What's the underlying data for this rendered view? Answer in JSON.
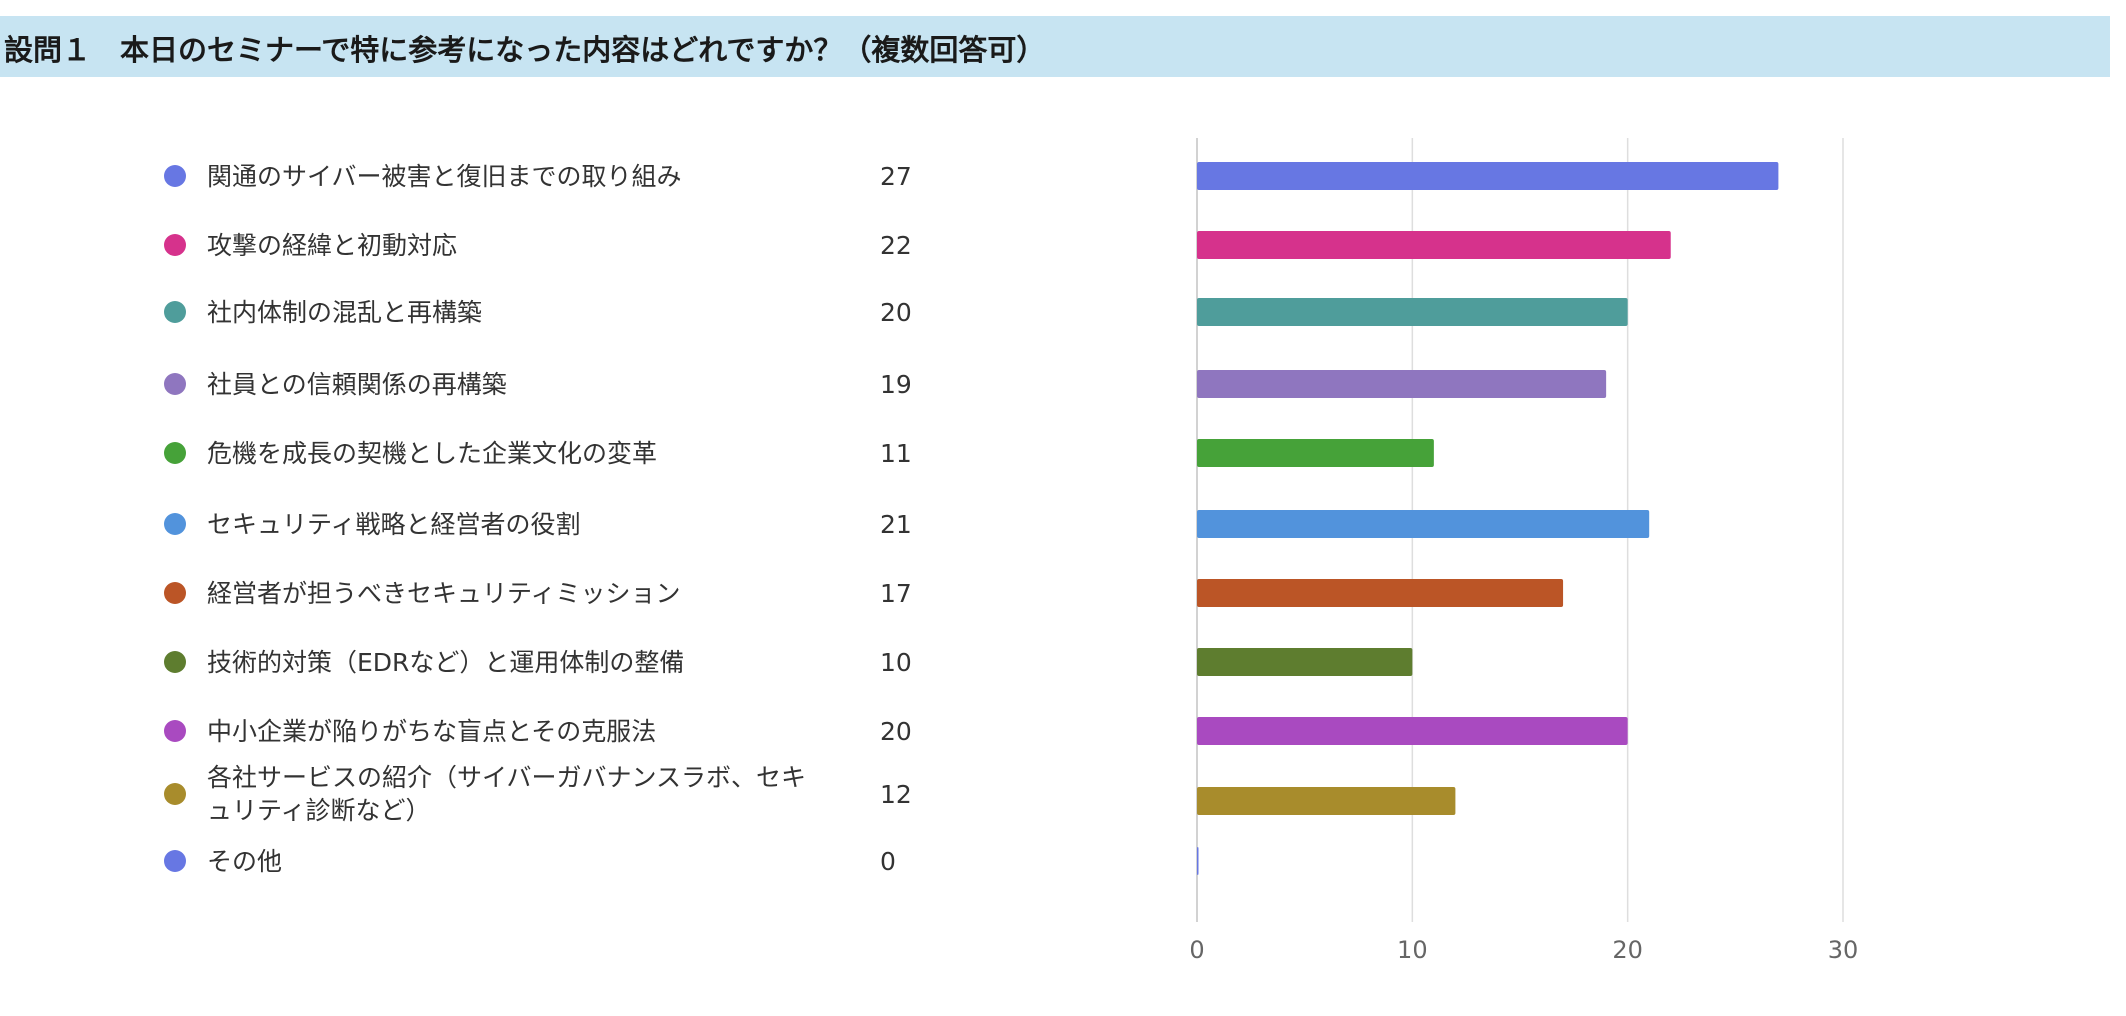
{
  "title": "設問１　本日のセミナーで特に参考になった内容はどれですか？（複数回答可）",
  "chart_data": {
    "type": "bar",
    "orientation": "horizontal",
    "categories": [
      "関通のサイバー被害と復旧までの取り組み",
      "攻撃の経緯と初動対応",
      "社内体制の混乱と再構築",
      "社員との信頼関係の再構築",
      "危機を成長の契機とした企業文化の変革",
      "セキュリティ戦略と経営者の役割",
      "経営者が担うべきセキュリティミッション",
      "技術的対策（EDRなど）と運用体制の整備",
      "中小企業が陥りがちな盲点とその克服法",
      "各社サービスの紹介（サイバーガバナンスラボ、セキュリティ診断など）",
      "その他"
    ],
    "values": [
      27,
      22,
      20,
      19,
      11,
      21,
      17,
      10,
      20,
      12,
      0
    ],
    "colors": [
      "#6777e3",
      "#d6328c",
      "#4f9d9b",
      "#8f76bf",
      "#46a239",
      "#5293dc",
      "#bb5526",
      "#5e7d2f",
      "#a94ac0",
      "#a88c2c",
      "#6777e3"
    ],
    "xlim": [
      0,
      30
    ],
    "x_ticks": [
      0,
      10,
      20,
      30
    ],
    "grid": true,
    "legend": "left"
  }
}
